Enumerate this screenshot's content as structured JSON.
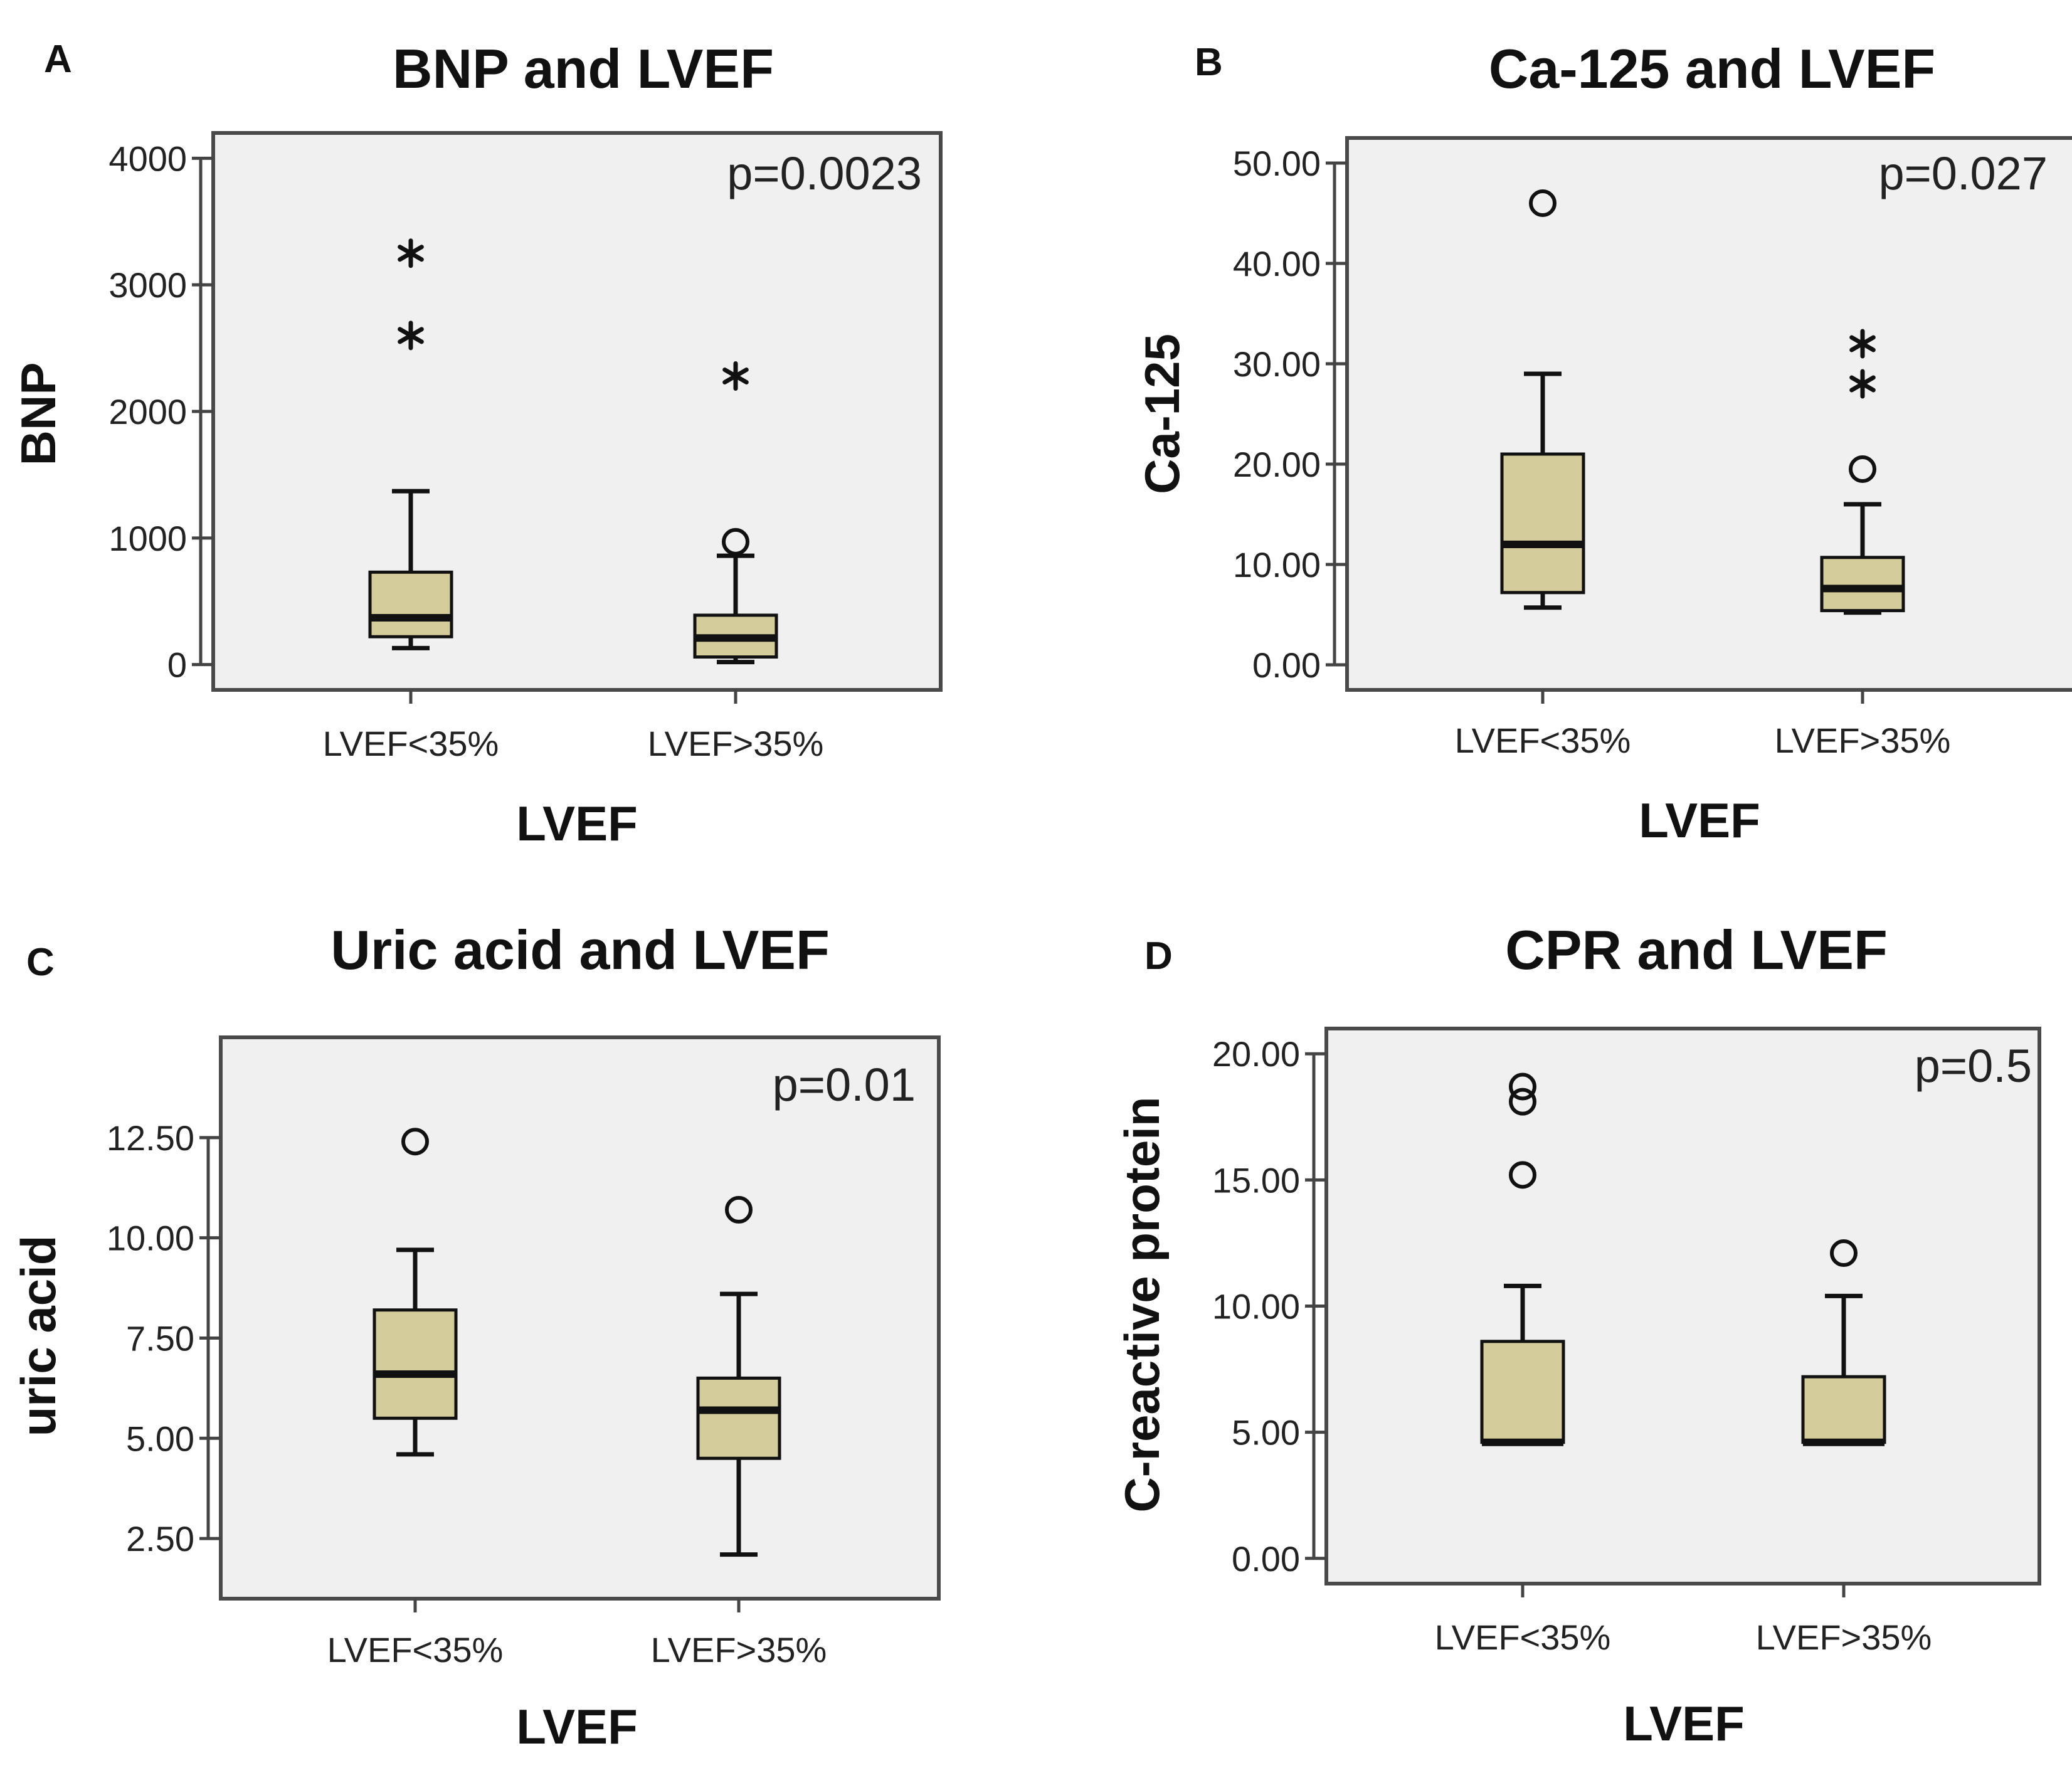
{
  "colors": {
    "box_fill": "#d4cc9a",
    "plot_bg": "#f0f0f0",
    "frame": "#4a4a4a",
    "ink": "#111111"
  },
  "chart_data": [
    {
      "panel": "A",
      "type": "boxplot",
      "title": "BNP and LVEF",
      "xlabel": "LVEF",
      "ylabel": "BNP",
      "p_value": "p=0.0023",
      "ylim": [
        -200,
        4200
      ],
      "yticks": [
        0,
        1000,
        2000,
        3000,
        4000
      ],
      "ytick_labels": [
        "0",
        "1000",
        "2000",
        "3000",
        "4000"
      ],
      "categories": [
        "LVEF<35%",
        "LVEF>35%"
      ],
      "boxes": [
        {
          "whisker_low": 130,
          "q1": 220,
          "median": 370,
          "q3": 730,
          "whisker_high": 1370,
          "outliers": [],
          "extremes": [
            2600,
            3250
          ]
        },
        {
          "whisker_low": 20,
          "q1": 60,
          "median": 210,
          "q3": 390,
          "whisker_high": 860,
          "outliers": [
            970
          ],
          "extremes": [
            2280
          ]
        }
      ]
    },
    {
      "panel": "B",
      "type": "boxplot",
      "title": "Ca-125 and LVEF",
      "xlabel": "LVEF",
      "ylabel": "Ca-125",
      "p_value": "p=0.027",
      "ylim": [
        -2.5,
        52.5
      ],
      "yticks": [
        0,
        10,
        20,
        30,
        40,
        50
      ],
      "ytick_labels": [
        "0.00",
        "10.00",
        "20.00",
        "30.00",
        "40.00",
        "50.00"
      ],
      "categories": [
        "LVEF<35%",
        "LVEF>35%"
      ],
      "boxes": [
        {
          "whisker_low": 5.7,
          "q1": 7.2,
          "median": 12.0,
          "q3": 21.0,
          "whisker_high": 29.0,
          "outliers": [
            46.0
          ],
          "extremes": []
        },
        {
          "whisker_low": 5.2,
          "q1": 5.4,
          "median": 7.6,
          "q3": 10.7,
          "whisker_high": 16.0,
          "outliers": [
            19.5
          ],
          "extremes": [
            28.0,
            32.0
          ]
        }
      ]
    },
    {
      "panel": "C",
      "type": "boxplot",
      "title": "Uric acid and LVEF",
      "xlabel": "LVEF",
      "ylabel": "uric acid",
      "p_value": "p=0.01",
      "ylim": [
        1.0,
        15.0
      ],
      "yticks": [
        2.5,
        5.0,
        7.5,
        10.0,
        12.5
      ],
      "ytick_labels": [
        "2.50",
        "5.00",
        "7.50",
        "10.00",
        "12.50"
      ],
      "categories": [
        "LVEF<35%",
        "LVEF>35%"
      ],
      "boxes": [
        {
          "whisker_low": 4.6,
          "q1": 5.5,
          "median": 6.6,
          "q3": 8.2,
          "whisker_high": 9.7,
          "outliers": [
            12.4
          ],
          "extremes": []
        },
        {
          "whisker_low": 2.1,
          "q1": 4.5,
          "median": 5.7,
          "q3": 6.5,
          "whisker_high": 8.6,
          "outliers": [
            10.7
          ],
          "extremes": []
        }
      ]
    },
    {
      "panel": "D",
      "type": "boxplot",
      "title": "CPR  and LVEF",
      "xlabel": "LVEF",
      "ylabel": "C-reactive protein",
      "p_value": "p=0.5",
      "ylim": [
        -1.0,
        21.0
      ],
      "yticks": [
        0,
        5,
        10,
        15,
        20
      ],
      "ytick_labels": [
        "0.00",
        "5.00",
        "10.00",
        "15.00",
        "20.00"
      ],
      "categories": [
        "LVEF<35%",
        "LVEF>35%"
      ],
      "boxes": [
        {
          "whisker_low": 4.6,
          "q1": 4.6,
          "median": 4.6,
          "q3": 8.6,
          "whisker_high": 10.8,
          "outliers": [
            15.2,
            18.1,
            18.7
          ],
          "extremes": []
        },
        {
          "whisker_low": 4.6,
          "q1": 4.6,
          "median": 4.6,
          "q3": 7.2,
          "whisker_high": 10.4,
          "outliers": [
            12.1
          ],
          "extremes": []
        }
      ]
    }
  ]
}
